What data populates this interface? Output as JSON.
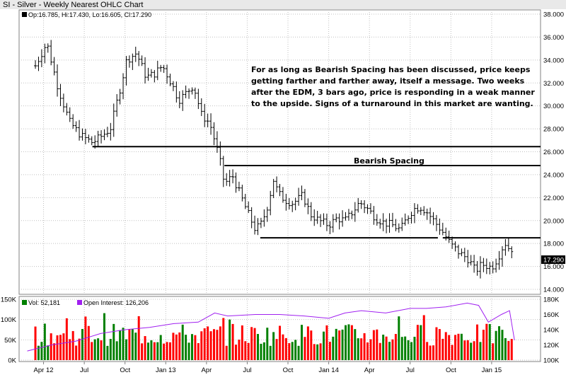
{
  "title": "SI - Silver - Weekly Nearest OHLC Chart",
  "price_panel": {
    "readout": "Op:16.785, Hi:17.430, Lo:16.605, Cl:17.290",
    "last_price_label": "17.290",
    "annotation_lines": [
      "For as long as Bearish Spacing has been discussed, price keeps",
      "getting farther and farther away, itself a message.    Two weeks",
      "after the EDM, 3 bars ago, price is responding in a weak manner",
      "to the upside.  Signs of a turnaround in this market are wanting."
    ],
    "spacing_label": "Bearish Spacing"
  },
  "volume_panel": {
    "vol_legend": "Vol: 52,181",
    "oi_legend": "Open Interest: 126,206"
  },
  "colors": {
    "background": "#ffffff",
    "title_bar": "#e9e9e9",
    "price_bar": "#000000",
    "up_volume": "#008000",
    "down_volume": "#ff0000",
    "open_interest": "#a020f0",
    "grid": "#c0c0c0",
    "last_price_box": "#000000"
  },
  "chart_data": [
    {
      "type": "ohlc",
      "title": "SI - Silver - Weekly Nearest OHLC Chart",
      "x_tick_labels": [
        "Apr 12",
        "Jul",
        "Oct",
        "Jan 13",
        "Apr",
        "Jul",
        "Oct",
        "Jan 14",
        "Apr",
        "Jul",
        "Oct",
        "Jan 15"
      ],
      "y_tick_labels": [
        "14.000",
        "16.000",
        "18.000",
        "20.000",
        "22.000",
        "24.000",
        "26.000",
        "28.000",
        "30.000",
        "32.000",
        "34.000",
        "36.000",
        "38.000"
      ],
      "ylim": [
        14,
        38
      ],
      "grid": true,
      "last_close": 17.29,
      "price_path": [
        [
          2012.2,
          33.5
        ],
        [
          2012.27,
          35.5
        ],
        [
          2012.34,
          31.5
        ],
        [
          2012.41,
          28.6
        ],
        [
          2012.48,
          27.4
        ],
        [
          2012.55,
          26.8
        ],
        [
          2012.6,
          27.3
        ],
        [
          2012.66,
          28.0
        ],
        [
          2012.72,
          31.5
        ],
        [
          2012.76,
          34.0
        ],
        [
          2012.82,
          34.6
        ],
        [
          2012.88,
          32.5
        ],
        [
          2012.93,
          32.8
        ],
        [
          2012.98,
          33.5
        ],
        [
          2013.04,
          31.8
        ],
        [
          2013.08,
          30.5
        ],
        [
          2013.13,
          31.2
        ],
        [
          2013.17,
          31.8
        ],
        [
          2013.22,
          29.2
        ],
        [
          2013.27,
          28.5
        ],
        [
          2013.3,
          27.0
        ],
        [
          2013.33,
          25.4
        ],
        [
          2013.36,
          23.2
        ],
        [
          2013.41,
          23.9
        ],
        [
          2013.45,
          22.5
        ],
        [
          2013.5,
          20.8
        ],
        [
          2013.55,
          19.2
        ],
        [
          2013.59,
          19.8
        ],
        [
          2013.63,
          21.5
        ],
        [
          2013.66,
          23.6
        ],
        [
          2013.69,
          22.4
        ],
        [
          2013.73,
          21.8
        ],
        [
          2013.78,
          21.5
        ],
        [
          2013.84,
          22.2
        ],
        [
          2013.89,
          20.5
        ],
        [
          2013.94,
          20.0
        ],
        [
          2014.0,
          19.6
        ],
        [
          2014.05,
          20.2
        ],
        [
          2014.1,
          20.0
        ],
        [
          2014.15,
          20.8
        ],
        [
          2014.19,
          21.6
        ],
        [
          2014.24,
          21.0
        ],
        [
          2014.29,
          20.2
        ],
        [
          2014.34,
          19.8
        ],
        [
          2014.39,
          19.6
        ],
        [
          2014.44,
          19.2
        ],
        [
          2014.48,
          20.2
        ],
        [
          2014.52,
          21.0
        ],
        [
          2014.56,
          21.2
        ],
        [
          2014.6,
          20.8
        ],
        [
          2014.65,
          19.9
        ],
        [
          2014.7,
          19.0
        ],
        [
          2014.75,
          17.9
        ],
        [
          2014.8,
          17.2
        ],
        [
          2014.86,
          16.6
        ],
        [
          2014.9,
          15.6
        ],
        [
          2014.94,
          16.2
        ],
        [
          2015.0,
          15.9
        ],
        [
          2015.04,
          16.8
        ],
        [
          2015.08,
          18.1
        ],
        [
          2015.12,
          17.3
        ]
      ],
      "annotation": "For as long as Bearish Spacing has been discussed, price keeps getting farther and farther away, itself a message.    Two weeks after the EDM, 3 bars ago, price is responding in a weak manner to the upside.  Signs of a turnaround in this market are wanting.",
      "horizontal_lines": [
        {
          "y": 26.45,
          "x_start": 2012.55,
          "x_end": 2015.3
        },
        {
          "y": 24.8,
          "x_start": 2013.36,
          "x_end": 2015.3,
          "label": "Bearish Spacing"
        },
        {
          "y": 18.5,
          "x_start": 2013.58,
          "x_end": 2014.67
        },
        {
          "y": 18.5,
          "x_start": 2014.7,
          "x_end": 2015.3
        }
      ]
    },
    {
      "type": "bar+line",
      "series": [
        {
          "name": "Vol: 52,181",
          "kind": "bar",
          "up_color": "#008000",
          "down_color": "#ff0000"
        },
        {
          "name": "Open Interest: 126,206",
          "kind": "line",
          "color": "#a020f0"
        }
      ],
      "left_y_tick_labels": [
        "0K",
        "50K",
        "100K",
        "150K"
      ],
      "left_ylim": [
        0,
        150000
      ],
      "right_y_tick_labels": [
        "100K",
        "120K",
        "140K",
        "160K",
        "180K"
      ],
      "right_ylim": [
        100000,
        180000
      ],
      "last_volume": 52181,
      "last_open_interest": 126206,
      "open_interest_path": [
        [
          2012.15,
          112000
        ],
        [
          2012.3,
          120000
        ],
        [
          2012.45,
          125000
        ],
        [
          2012.6,
          135000
        ],
        [
          2012.75,
          140000
        ],
        [
          2012.9,
          143000
        ],
        [
          2013.05,
          148000
        ],
        [
          2013.2,
          150000
        ],
        [
          2013.3,
          162000
        ],
        [
          2013.38,
          158000
        ],
        [
          2013.55,
          160000
        ],
        [
          2013.7,
          160000
        ],
        [
          2013.85,
          158000
        ],
        [
          2014.0,
          155000
        ],
        [
          2014.1,
          162000
        ],
        [
          2014.2,
          165000
        ],
        [
          2014.35,
          162000
        ],
        [
          2014.5,
          168000
        ],
        [
          2014.6,
          168000
        ],
        [
          2014.72,
          170000
        ],
        [
          2014.85,
          175000
        ],
        [
          2014.92,
          172000
        ],
        [
          2014.98,
          150000
        ],
        [
          2015.06,
          160000
        ],
        [
          2015.11,
          165000
        ],
        [
          2015.14,
          126206
        ]
      ]
    }
  ]
}
